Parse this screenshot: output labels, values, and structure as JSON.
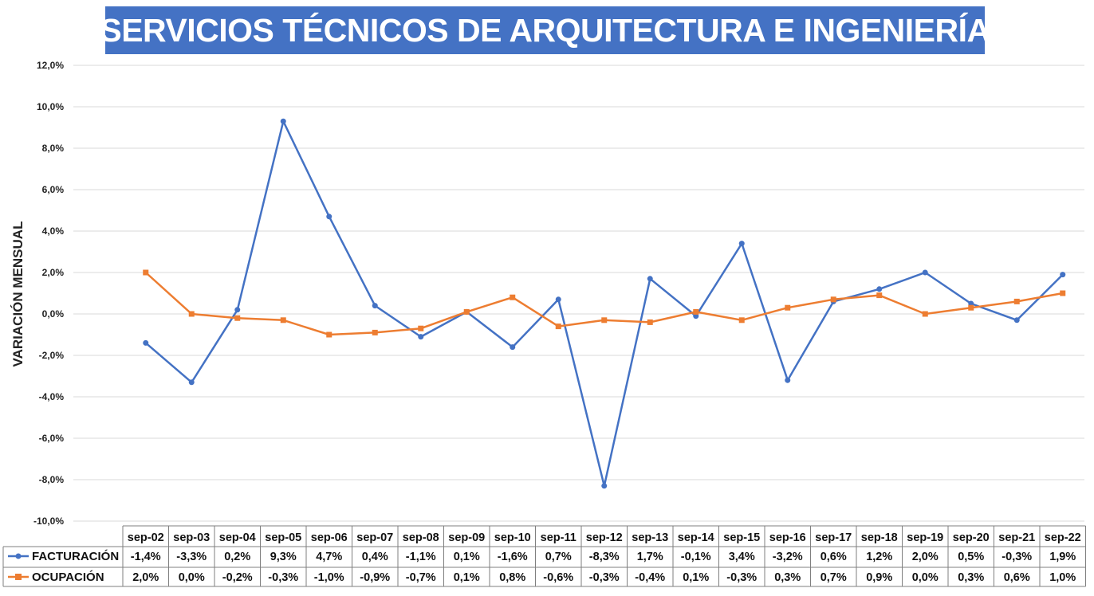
{
  "title": "SERVICIOS TÉCNICOS DE ARQUITECTURA E INGENIERÍA",
  "colors": {
    "title_bg": "#4472c4",
    "title_text": "#ffffff",
    "facturacion": "#4472c4",
    "ocupacion": "#ed7d31",
    "grid": "#d9d9d9"
  },
  "chart_data": {
    "type": "line",
    "title": "SERVICIOS TÉCNICOS DE ARQUITECTURA E INGENIERÍA",
    "xlabel": "",
    "ylabel": "VARIACIÓN MENSUAL",
    "ylim": [
      -10,
      12
    ],
    "ytick_step": 2,
    "ytick_labels": [
      "12,0%",
      "10,0%",
      "8,0%",
      "6,0%",
      "4,0%",
      "2,0%",
      "0,0%",
      "-2,0%",
      "-4,0%",
      "-6,0%",
      "-8,0%",
      "-10,0%"
    ],
    "grid": true,
    "legend": "data-table",
    "categories": [
      "sep-02",
      "sep-03",
      "sep-04",
      "sep-05",
      "sep-06",
      "sep-07",
      "sep-08",
      "sep-09",
      "sep-10",
      "sep-11",
      "sep-12",
      "sep-13",
      "sep-14",
      "sep-15",
      "sep-16",
      "sep-17",
      "sep-18",
      "sep-19",
      "sep-20",
      "sep-21",
      "sep-22"
    ],
    "series": [
      {
        "name": "FACTURACIÓN",
        "color": "#4472c4",
        "marker": "circle",
        "values": [
          -1.4,
          -3.3,
          0.2,
          9.3,
          4.7,
          0.4,
          -1.1,
          0.1,
          -1.6,
          0.7,
          -8.3,
          1.7,
          -0.1,
          3.4,
          -3.2,
          0.6,
          1.2,
          2.0,
          0.5,
          -0.3,
          1.9
        ],
        "labels": [
          "-1,4%",
          "-3,3%",
          "0,2%",
          "9,3%",
          "4,7%",
          "0,4%",
          "-1,1%",
          "0,1%",
          "-1,6%",
          "0,7%",
          "-8,3%",
          "1,7%",
          "-0,1%",
          "3,4%",
          "-3,2%",
          "0,6%",
          "1,2%",
          "2,0%",
          "0,5%",
          "-0,3%",
          "1,9%"
        ]
      },
      {
        "name": "OCUPACIÓN",
        "color": "#ed7d31",
        "marker": "square",
        "values": [
          2.0,
          0.0,
          -0.2,
          -0.3,
          -1.0,
          -0.9,
          -0.7,
          0.1,
          0.8,
          -0.6,
          -0.3,
          -0.4,
          0.1,
          -0.3,
          0.3,
          0.7,
          0.9,
          0.0,
          0.3,
          0.6,
          1.0
        ],
        "labels": [
          "2,0%",
          "0,0%",
          "-0,2%",
          "-0,3%",
          "-1,0%",
          "-0,9%",
          "-0,7%",
          "0,1%",
          "0,8%",
          "-0,6%",
          "-0,3%",
          "-0,4%",
          "0,1%",
          "-0,3%",
          "0,3%",
          "0,7%",
          "0,9%",
          "0,0%",
          "0,3%",
          "0,6%",
          "1,0%"
        ]
      }
    ]
  }
}
